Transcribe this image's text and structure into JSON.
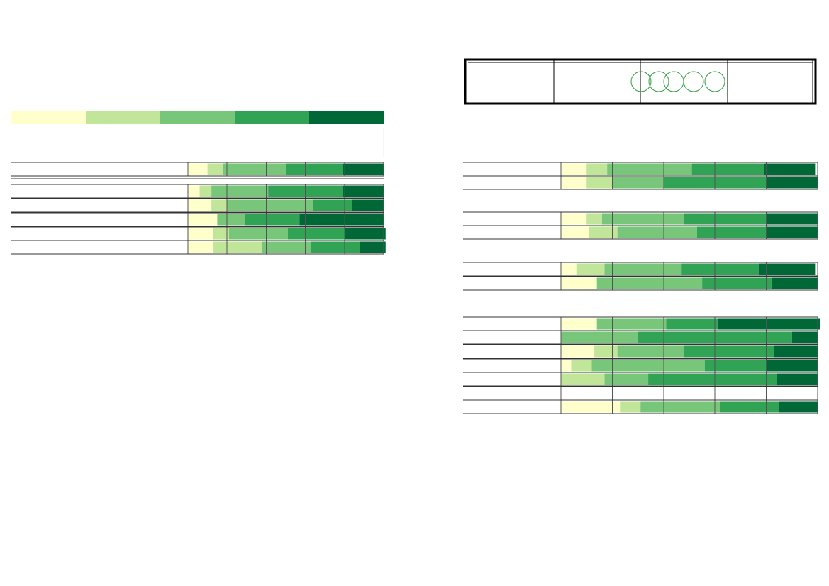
{
  "chart_data": [
    {
      "type": "stacked-bar",
      "orientation": "horizontal",
      "categories": [
        null,
        null,
        null,
        null,
        null,
        null
      ],
      "series": [
        {
          "color": "#ffffcc",
          "values": [
            10,
            6,
            12,
            15,
            13,
            13
          ]
        },
        {
          "color": "#c2e699",
          "values": [
            8,
            6,
            8,
            0,
            8,
            25
          ]
        },
        {
          "color": "#78c679",
          "values": [
            32,
            29,
            44,
            14,
            30,
            25
          ]
        },
        {
          "color": "#31a354",
          "values": [
            29,
            38,
            20,
            28,
            29,
            25
          ]
        },
        {
          "color": "#006837",
          "values": [
            21,
            21,
            16,
            43,
            21,
            13
          ]
        }
      ],
      "xlim": [
        0,
        100
      ],
      "xticks": [
        0,
        20,
        40,
        60,
        80,
        100
      ],
      "grid": true,
      "legend": "top"
    },
    {
      "type": "stacked-bar",
      "orientation": "horizontal",
      "categories": [
        null,
        null,
        null,
        null,
        null,
        null,
        null,
        null,
        null,
        null,
        null,
        null,
        null
      ],
      "series": [
        {
          "color": "#ffffcc",
          "values": [
            10,
            10,
            10,
            11,
            6,
            14,
            14,
            0,
            13,
            4,
            0,
            null,
            23
          ]
        },
        {
          "color": "#c2e699",
          "values": [
            8,
            10,
            6,
            11,
            11,
            0,
            0,
            0,
            9,
            8,
            17,
            null,
            8
          ]
        },
        {
          "color": "#78c679",
          "values": [
            33,
            20,
            32,
            31,
            30,
            41,
            27,
            30,
            26,
            44,
            17,
            null,
            31
          ]
        },
        {
          "color": "#31a354",
          "values": [
            28,
            40,
            32,
            27,
            30,
            27,
            20,
            60,
            35,
            24,
            50,
            null,
            23
          ]
        },
        {
          "color": "#006837",
          "values": [
            20,
            20,
            20,
            20,
            22,
            18,
            40,
            10,
            17,
            20,
            16,
            null,
            15
          ]
        }
      ],
      "xlim": [
        0,
        100
      ],
      "xticks": [
        0,
        20,
        40,
        60,
        80,
        100
      ],
      "grid": true
    }
  ]
}
